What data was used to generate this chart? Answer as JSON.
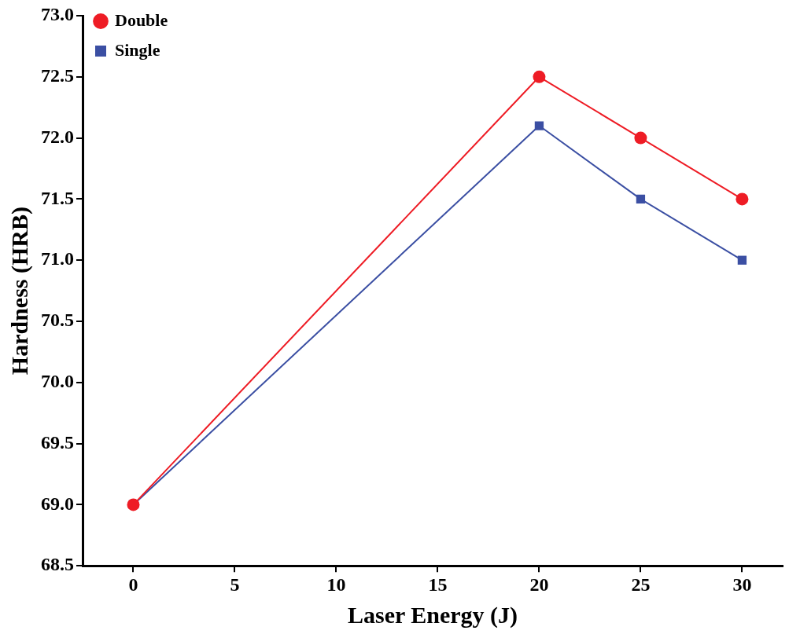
{
  "chart_data": {
    "type": "line",
    "xlabel": "Laser Energy (J)",
    "ylabel": "Hardness (HRB)",
    "x": [
      0,
      20,
      25,
      30
    ],
    "series": [
      {
        "name": "Single",
        "color": "#3b4fa3",
        "values": [
          69.0,
          72.1,
          71.5,
          71.0
        ],
        "marker": "square"
      },
      {
        "name": "Double",
        "color": "#ee1c25",
        "values": [
          69.0,
          72.5,
          72.0,
          71.5
        ],
        "marker": "circle"
      }
    ],
    "xlim": [
      -2.5,
      32
    ],
    "xticks": [
      0,
      5,
      10,
      15,
      20,
      25,
      30
    ],
    "ylim": [
      68.5,
      73
    ],
    "yticks": [
      {
        "value": 68.5,
        "label": "68.5"
      },
      {
        "value": 69,
        "label": "69.0"
      },
      {
        "value": 69.5,
        "label": "69.5"
      },
      {
        "value": 70,
        "label": "70.0"
      },
      {
        "value": 70.5,
        "label": "70.5"
      },
      {
        "value": 71,
        "label": "71.0"
      },
      {
        "value": 71.5,
        "label": "71.5"
      },
      {
        "value": 72,
        "label": "72.0"
      },
      {
        "value": 72.5,
        "label": "72.5"
      },
      {
        "value": 73,
        "label": "73.0"
      }
    ],
    "grid": false,
    "legend": "top left",
    "line_style": "solid"
  }
}
